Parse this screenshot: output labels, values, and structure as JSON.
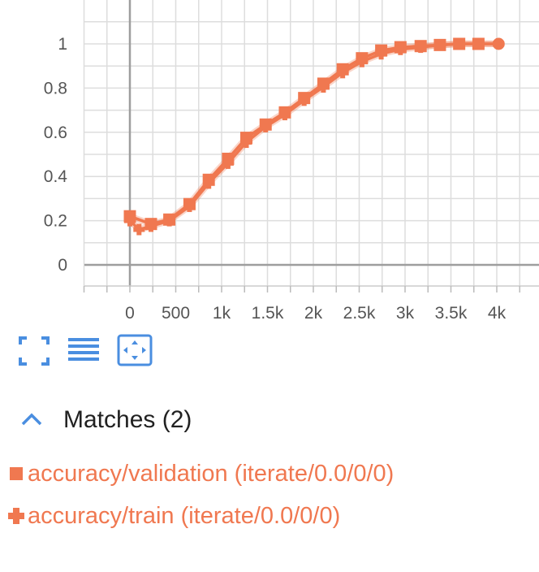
{
  "chart_data": {
    "type": "line",
    "xlabel": "",
    "ylabel": "",
    "xlim": [
      -500,
      4500
    ],
    "ylim": [
      -0.1,
      1.2
    ],
    "grid": true,
    "x_ticks": [
      0,
      500,
      1000,
      1500,
      2000,
      2500,
      3000,
      3500,
      4000
    ],
    "x_tick_labels": [
      "0",
      "500",
      "1k",
      "1.5k",
      "2k",
      "2.5k",
      "3k",
      "3.5k",
      "4k"
    ],
    "y_ticks": [
      0,
      0.2,
      0.4,
      0.6,
      0.8,
      1
    ],
    "y_tick_labels": [
      "0",
      "0.2",
      "0.4",
      "0.6",
      "0.8",
      "1"
    ],
    "color": "#f07850",
    "series": [
      {
        "name": "accuracy/validation (iterate/0.0/0/0)",
        "marker": "square",
        "x": [
          0,
          230,
          430,
          650,
          860,
          1070,
          1270,
          1480,
          1690,
          1900,
          2110,
          2320,
          2530,
          2740,
          2950,
          3170,
          3380,
          3590,
          3800,
          4020
        ],
        "y": [
          0.22,
          0.185,
          0.205,
          0.275,
          0.385,
          0.48,
          0.575,
          0.635,
          0.69,
          0.755,
          0.82,
          0.885,
          0.935,
          0.97,
          0.985,
          0.99,
          0.995,
          1.0,
          1.0,
          1.0
        ]
      },
      {
        "name": "accuracy/train (iterate/0.0/0/0)",
        "marker": "plus",
        "x": [
          0,
          100,
          230,
          430,
          650,
          860,
          1070,
          1270,
          1480,
          1690,
          1900,
          2110,
          2320,
          2530,
          2740,
          2950,
          3170,
          3380,
          3590,
          3800,
          4020
        ],
        "y": [
          0.2,
          0.16,
          0.175,
          0.2,
          0.265,
          0.37,
          0.46,
          0.555,
          0.625,
          0.68,
          0.745,
          0.805,
          0.87,
          0.92,
          0.955,
          0.975,
          0.985,
          0.995,
          1.0,
          1.0,
          1.0
        ]
      }
    ]
  },
  "toolbar": {
    "icons": [
      "fullscreen-icon",
      "toggle-y-log-icon",
      "fit-domain-icon"
    ]
  },
  "matches": {
    "label": "Matches (2)",
    "chevron_icon": "chevron-up-icon",
    "items": [
      {
        "label": "accuracy/validation (iterate/0.0/0/0)",
        "marker": "square"
      },
      {
        "label": "accuracy/train (iterate/0.0/0/0)",
        "marker": "plus"
      }
    ]
  },
  "colors": {
    "series": "#f07850",
    "accent": "#4a8ee0",
    "grid": "#dddddd",
    "axis": "#9e9e9e"
  }
}
